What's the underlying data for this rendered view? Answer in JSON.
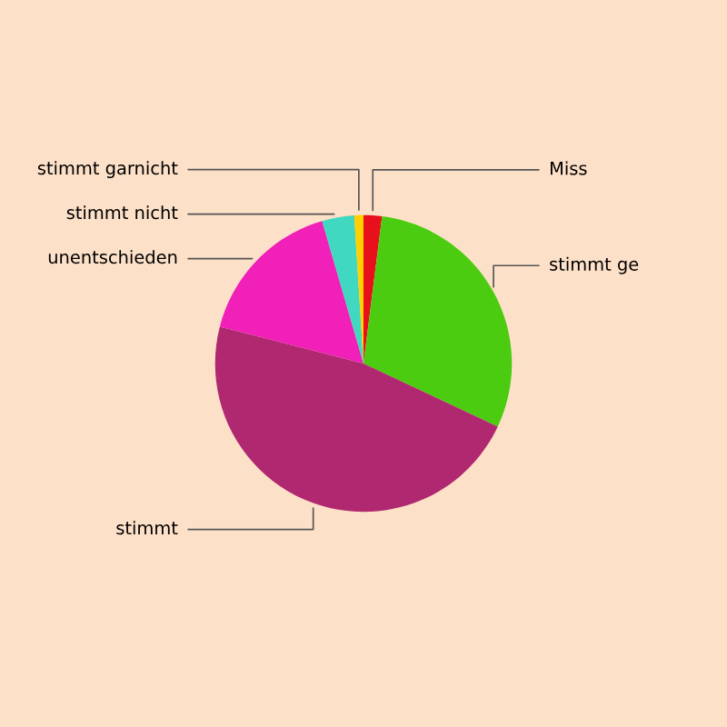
{
  "chart_data": {
    "type": "pie",
    "categories": [
      "Miss",
      "stimmt ge",
      "stimmt",
      "unentschieden",
      "stimmt nicht",
      "stimmt garnicht"
    ],
    "values": [
      2,
      30,
      47,
      16.5,
      3.5,
      1
    ],
    "colors": [
      "#e8101a",
      "#4ccc10",
      "#b02870",
      "#f020b8",
      "#40d8c0",
      "#ffd000"
    ]
  }
}
